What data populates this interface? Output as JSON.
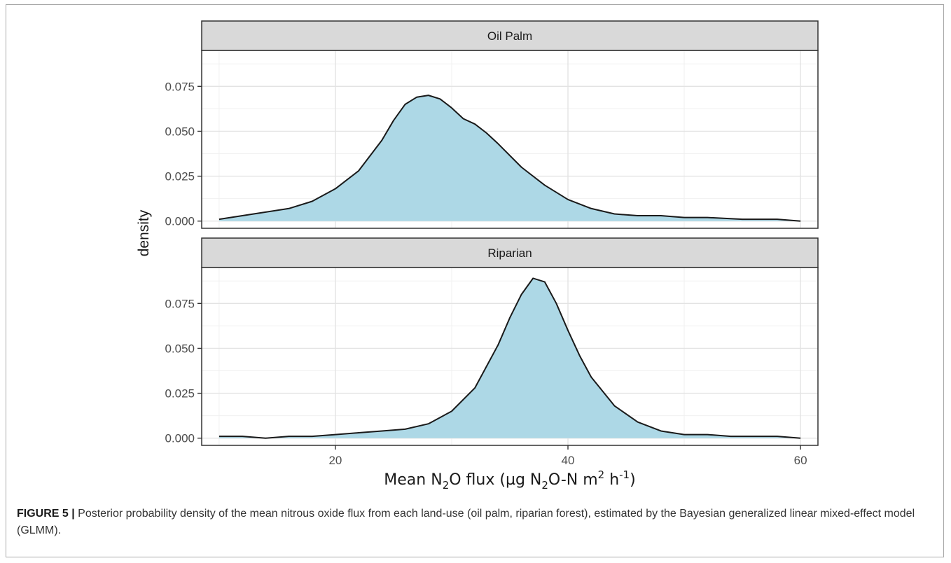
{
  "chart_data": {
    "type": "area",
    "xlabel_parts": [
      "Mean N",
      "2",
      "O flux (µg N",
      "2",
      "O-N m",
      "2",
      " h",
      "-1",
      ")"
    ],
    "ylabel": "density",
    "xlim": [
      8.5,
      61.5
    ],
    "x_ticks": [
      20,
      40,
      60
    ],
    "x_tick_labels": [
      "20",
      "40",
      "60"
    ],
    "ylim": [
      -0.004,
      0.095
    ],
    "y_ticks": [
      0.0,
      0.025,
      0.05,
      0.075
    ],
    "y_tick_labels": [
      "0.000",
      "0.025",
      "0.050",
      "0.075"
    ],
    "fill_color": "#add8e6",
    "line_color": "#1a1a1a",
    "strip_color": "#d9d9d9",
    "grid": true,
    "legend": "none",
    "panels": [
      {
        "name": "Oil Palm",
        "x": [
          10,
          12,
          14,
          16,
          18,
          20,
          22,
          24,
          25,
          26,
          27,
          28,
          29,
          30,
          31,
          32,
          33,
          34,
          36,
          38,
          40,
          42,
          44,
          46,
          48,
          50,
          52,
          55,
          58,
          60
        ],
        "y": [
          0.001,
          0.003,
          0.005,
          0.007,
          0.011,
          0.018,
          0.028,
          0.045,
          0.056,
          0.065,
          0.069,
          0.07,
          0.068,
          0.063,
          0.057,
          0.054,
          0.049,
          0.043,
          0.03,
          0.02,
          0.012,
          0.007,
          0.004,
          0.003,
          0.003,
          0.002,
          0.002,
          0.001,
          0.001,
          0.0
        ]
      },
      {
        "name": "Riparian",
        "x": [
          10,
          12,
          14,
          16,
          18,
          20,
          22,
          24,
          26,
          28,
          30,
          32,
          34,
          35,
          36,
          37,
          38,
          39,
          40,
          41,
          42,
          44,
          46,
          48,
          50,
          52,
          54,
          56,
          58,
          60
        ],
        "y": [
          0.001,
          0.001,
          0.0,
          0.001,
          0.001,
          0.002,
          0.003,
          0.004,
          0.005,
          0.008,
          0.015,
          0.028,
          0.052,
          0.067,
          0.08,
          0.089,
          0.087,
          0.075,
          0.06,
          0.046,
          0.034,
          0.018,
          0.009,
          0.004,
          0.002,
          0.002,
          0.001,
          0.001,
          0.001,
          0.0
        ]
      }
    ]
  },
  "caption": {
    "label": "FIGURE 5 |",
    "text": " Posterior probability density of the mean nitrous oxide flux from each land-use (oil palm, riparian forest), estimated by the Bayesian generalized linear mixed-effect model (GLMM)."
  }
}
